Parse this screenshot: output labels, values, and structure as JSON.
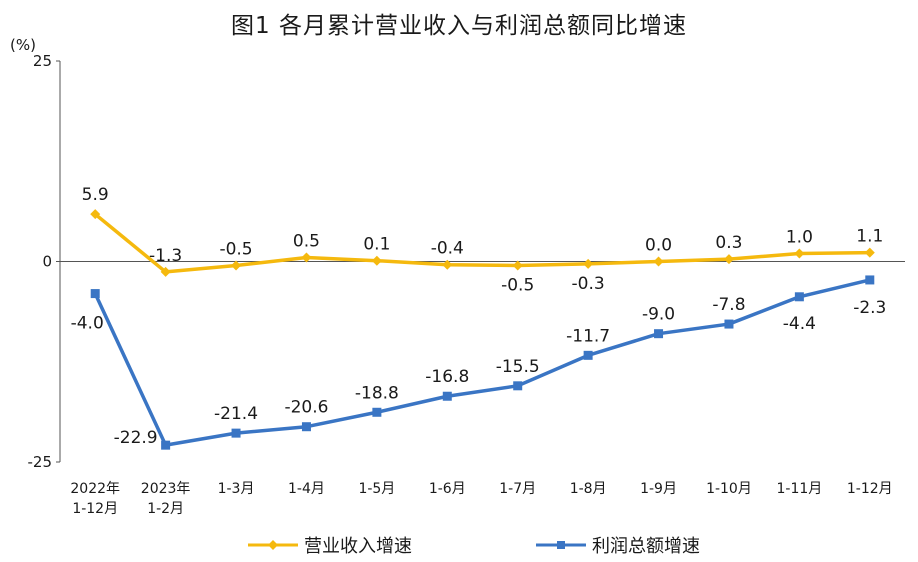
{
  "title": "图1 各月累计营业收入与利润总额同比增速",
  "unit": "(%)",
  "colors": {
    "revenue": "#F5B90E",
    "profit": "#3A75C4",
    "axis": "#555555"
  },
  "chart_data": {
    "type": "line",
    "categories": [
      "2022年\n1-12月",
      "2023年\n1-2月",
      "1-3月",
      "1-4月",
      "1-5月",
      "1-6月",
      "1-7月",
      "1-8月",
      "1-9月",
      "1-10月",
      "1-11月",
      "1-12月"
    ],
    "series": [
      {
        "name": "营业收入增速",
        "values": [
          5.9,
          -1.3,
          -0.5,
          0.5,
          0.1,
          -0.4,
          -0.5,
          -0.3,
          0.0,
          0.3,
          1.0,
          1.1
        ],
        "labels": [
          "5.9",
          "-1.3",
          "-0.5",
          "0.5",
          "0.1",
          "-0.4",
          "-0.5",
          "-0.3",
          "0.0",
          "0.3",
          "1.0",
          "1.1"
        ]
      },
      {
        "name": "利润总额增速",
        "values": [
          -4.0,
          -22.9,
          -21.4,
          -20.6,
          -18.8,
          -16.8,
          -15.5,
          -11.7,
          -9.0,
          -7.8,
          -4.4,
          -2.3
        ],
        "labels": [
          "-4.0",
          "-22.9",
          "-21.4",
          "-20.6",
          "-18.8",
          "-16.8",
          "-15.5",
          "-11.7",
          "-9.0",
          "-7.8",
          "-4.4",
          "-2.3"
        ]
      }
    ],
    "ylim": [
      -25,
      25
    ],
    "yticks": [
      "25",
      "0",
      "-25"
    ],
    "grid": false,
    "legend": "bottom"
  }
}
